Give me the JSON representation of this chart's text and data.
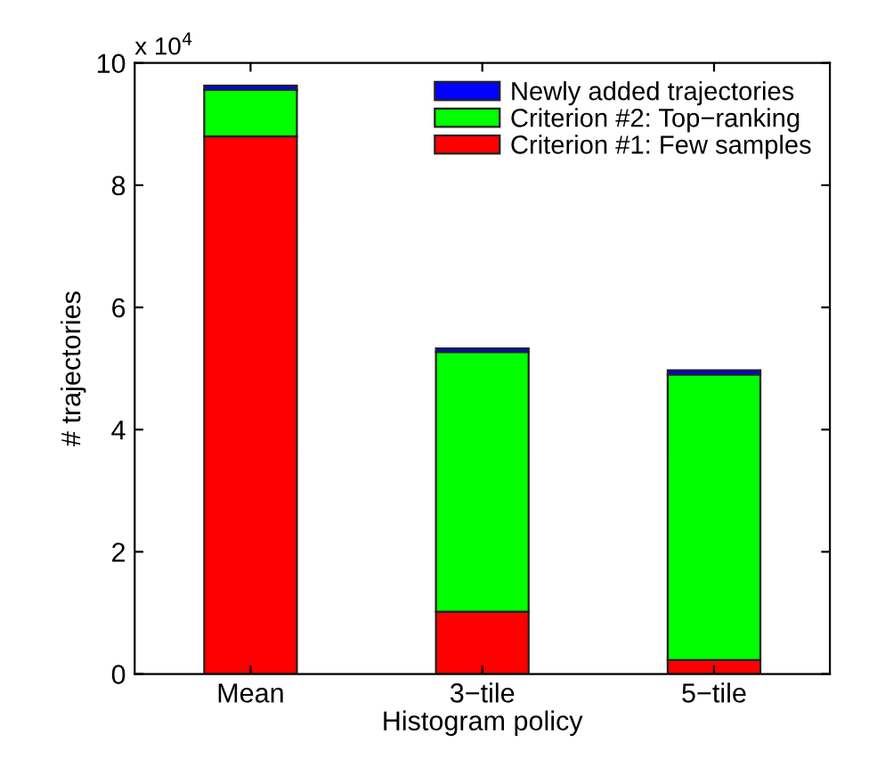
{
  "chart_data": {
    "type": "bar",
    "stacked": true,
    "xlabel": "Histogram policy",
    "ylabel": "# trajectories",
    "categories": [
      "Mean",
      "3−tile",
      "5−tile"
    ],
    "series": [
      {
        "name": "Criterion #1: Few samples",
        "color": "#ff0000",
        "values": [
          8.8,
          1.02,
          0.23
        ]
      },
      {
        "name": "Criterion #2: Top−ranking",
        "color": "#00ff00",
        "values": [
          0.76,
          4.25,
          4.67
        ]
      },
      {
        "name": "Newly added trajectories",
        "color": "#0000ff",
        "values": [
          0.07,
          0.06,
          0.07
        ]
      }
    ],
    "ylim": [
      0,
      10
    ],
    "yticks": [
      0,
      2,
      4,
      6,
      8,
      10
    ],
    "annotations": [
      "x 10$^{4}$"
    ],
    "legend": "top right",
    "grid": false
  }
}
